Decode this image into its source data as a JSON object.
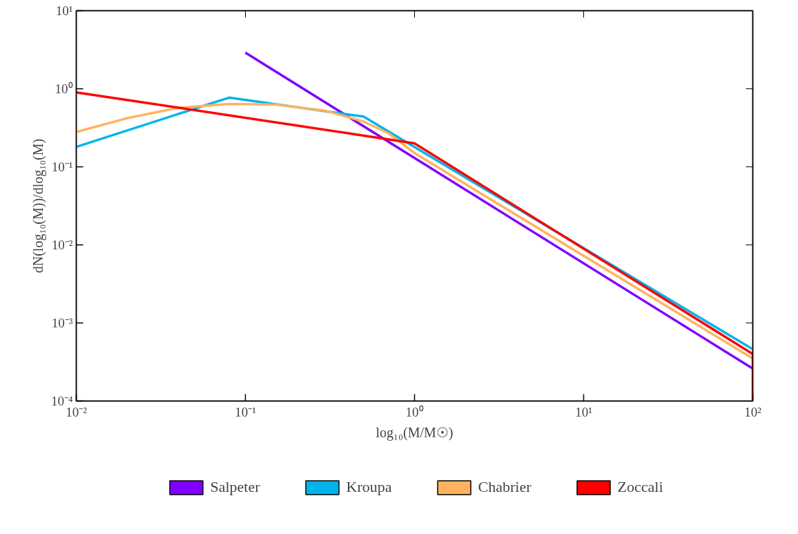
{
  "chart_data": {
    "type": "line",
    "xlabel": "log₁₀(M/M☉)",
    "ylabel": "dN(log₁₀(M))/dlog₁₀(M)",
    "log": "xy",
    "grid": false,
    "legend": "bottom",
    "line_style": "solid",
    "xlim": [
      0.01,
      100
    ],
    "ylim": [
      0.0001,
      10
    ],
    "xticks": [
      {
        "value": 0.01,
        "label": "10⁻²"
      },
      {
        "value": 0.1,
        "label": "10⁻¹"
      },
      {
        "value": 1,
        "label": "10⁰"
      },
      {
        "value": 10,
        "label": "10¹"
      },
      {
        "value": 100,
        "label": "10²"
      }
    ],
    "yticks": [
      {
        "value": 0.0001,
        "label": "10⁻⁴"
      },
      {
        "value": 0.001,
        "label": "10⁻³"
      },
      {
        "value": 0.01,
        "label": "10⁻²"
      },
      {
        "value": 0.1,
        "label": "10⁻¹"
      },
      {
        "value": 1,
        "label": "10⁰"
      },
      {
        "value": 10,
        "label": "10¹"
      }
    ],
    "series": [
      {
        "name": "Salpeter",
        "color": "#7f00ff",
        "x": [
          0.1,
          100
        ],
        "values": [
          2.9,
          0.00026
        ]
      },
      {
        "name": "Kroupa",
        "color": "#00b4eb",
        "x": [
          0.01,
          0.08,
          0.5,
          100
        ],
        "values": [
          0.18,
          0.77,
          0.44,
          0.00046
        ]
      },
      {
        "name": "Chabrier",
        "color": "#ffb360",
        "x": [
          0.01,
          0.02,
          0.04,
          0.08,
          0.15,
          0.3,
          0.5,
          0.7,
          1,
          100
        ],
        "values": [
          0.28,
          0.42,
          0.57,
          0.64,
          0.63,
          0.52,
          0.38,
          0.27,
          0.15,
          0.00035
        ]
      },
      {
        "name": "Zoccali",
        "color": "#ff0000",
        "x": [
          0.01,
          1,
          100,
          100
        ],
        "values": [
          0.9,
          0.2,
          0.0004,
          0.0001
        ]
      }
    ]
  }
}
